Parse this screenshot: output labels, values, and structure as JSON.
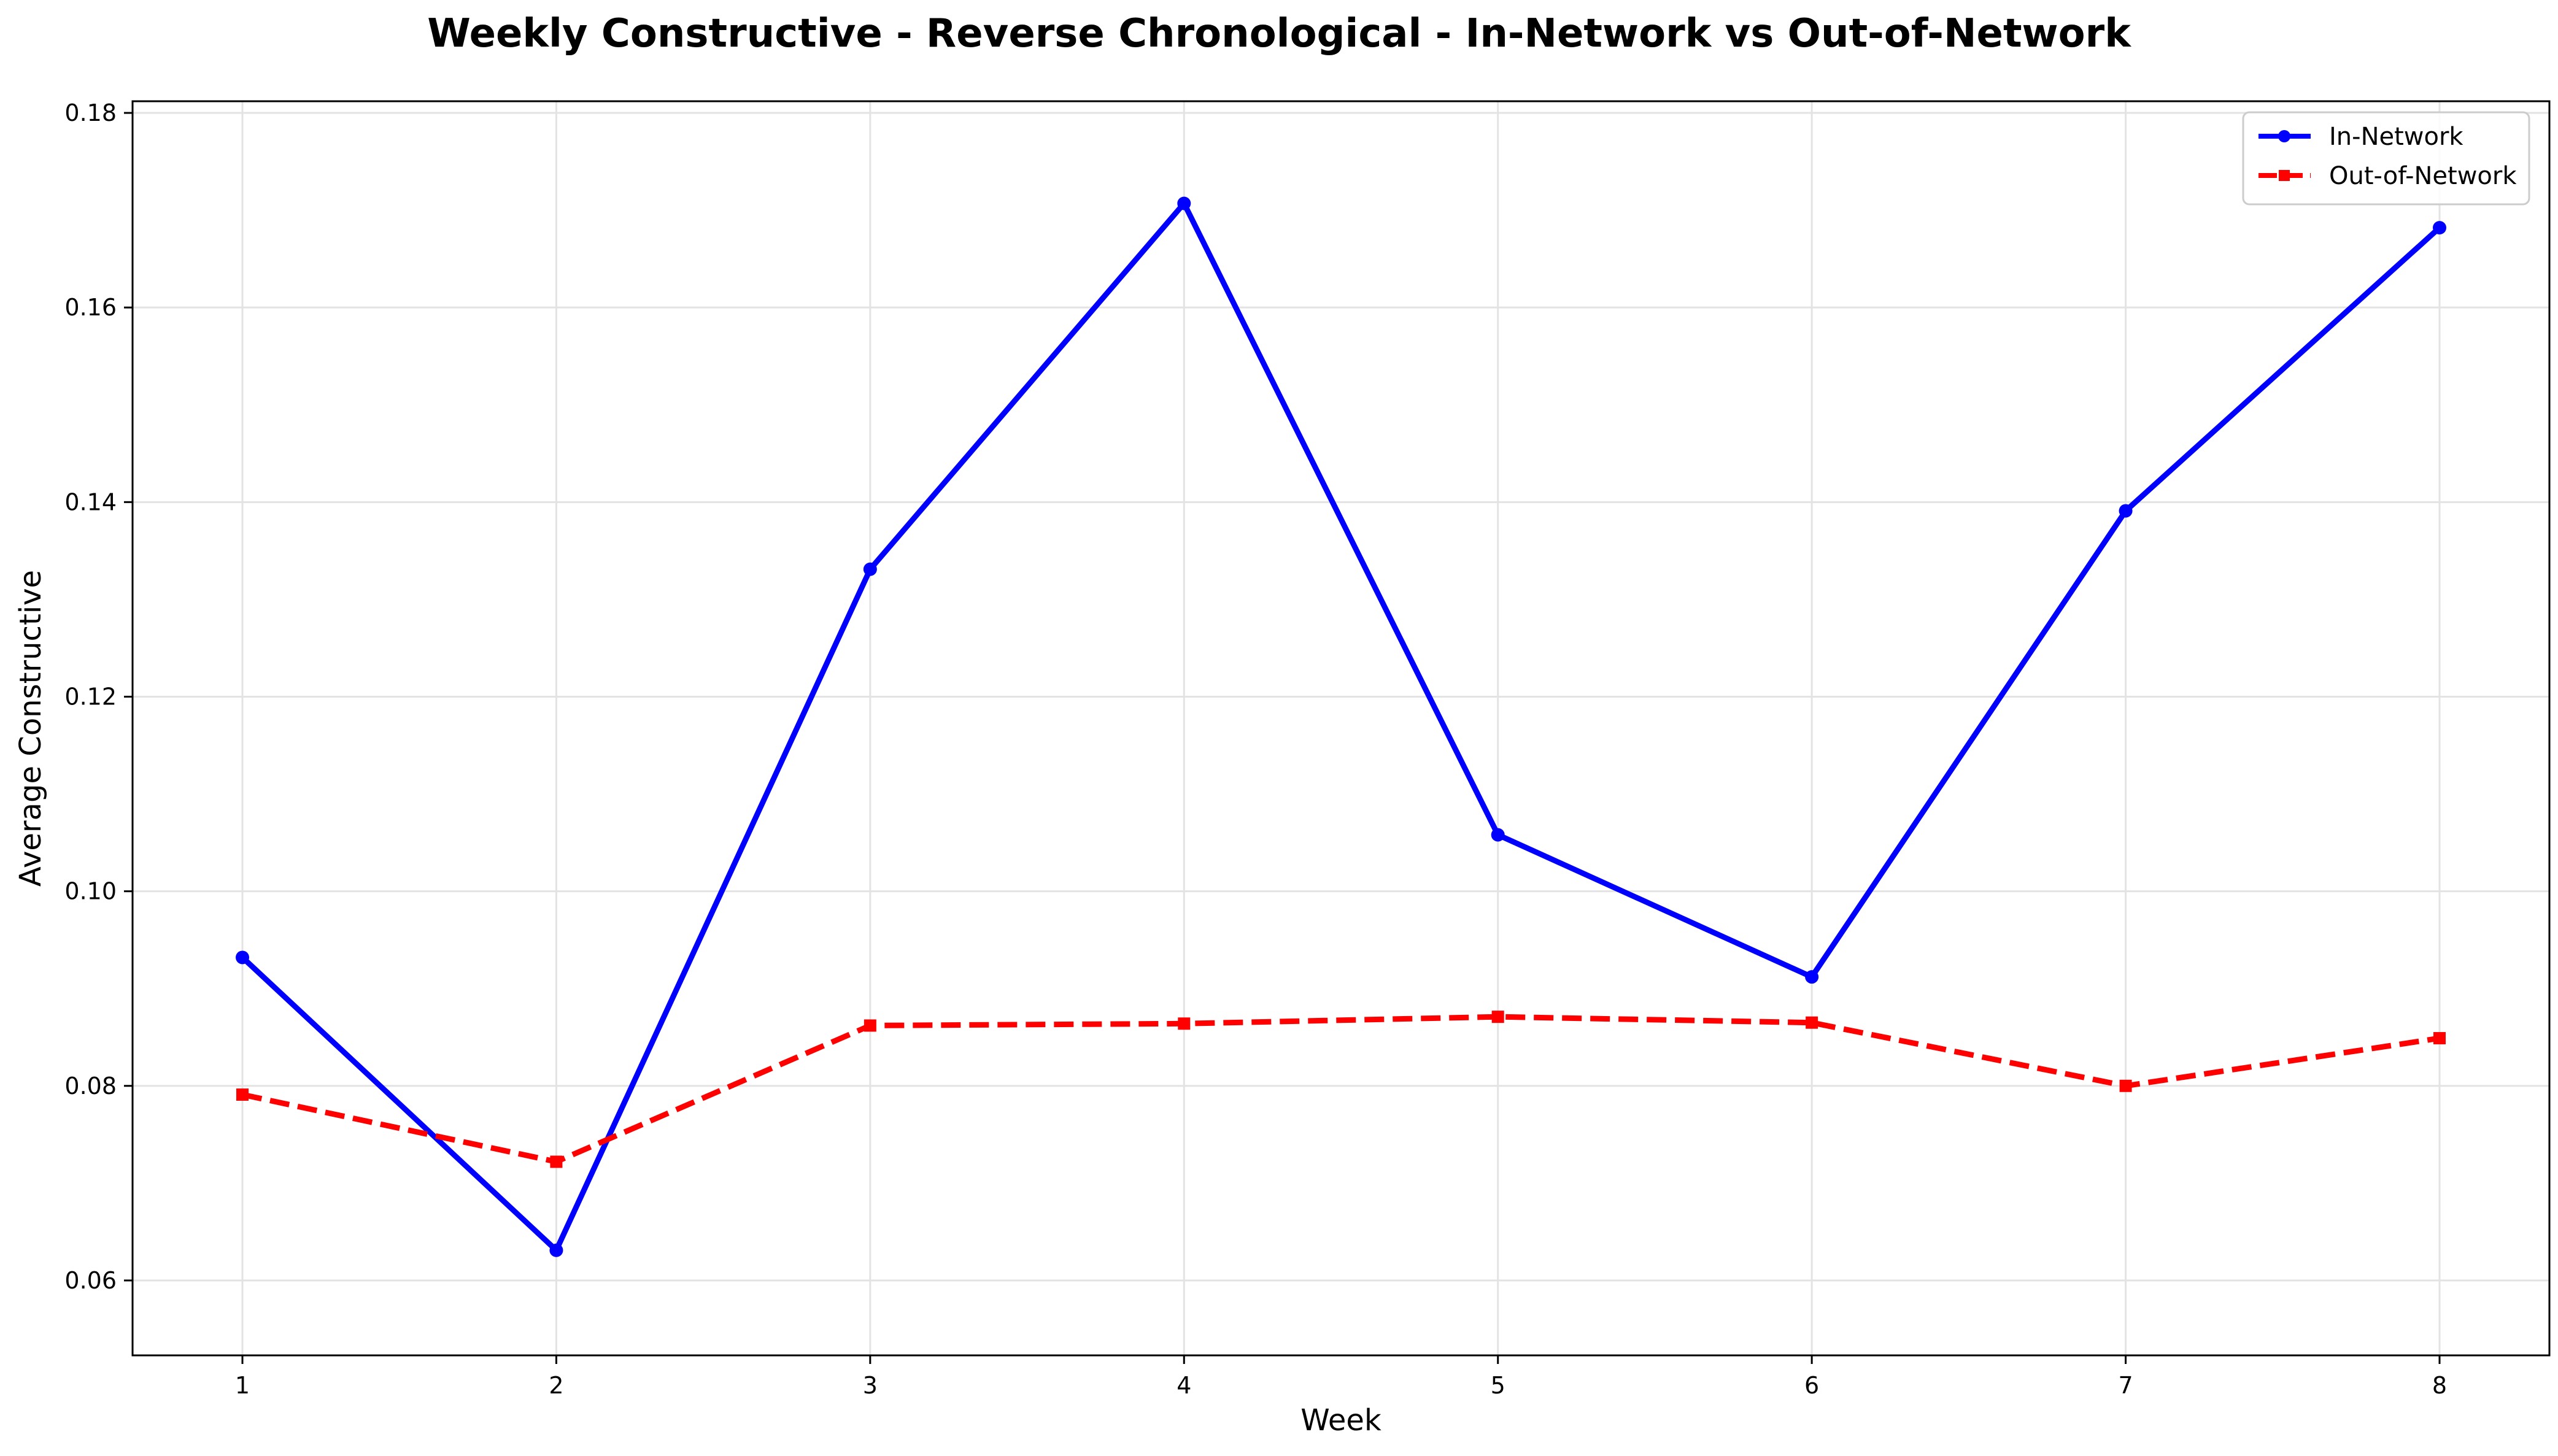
{
  "chart_data": {
    "type": "line",
    "title": "Weekly Constructive - Reverse Chronological - In-Network vs Out-of-Network",
    "xlabel": "Week",
    "ylabel": "Average Constructive",
    "x": [
      1,
      2,
      3,
      4,
      5,
      6,
      7,
      8
    ],
    "x_ticks": [
      "1",
      "2",
      "3",
      "4",
      "5",
      "6",
      "7",
      "8"
    ],
    "xlim": [
      0.65,
      8.35
    ],
    "ylim": [
      0.0523,
      0.1812
    ],
    "y_ticks": [
      "0.06",
      "0.08",
      "0.10",
      "0.12",
      "0.14",
      "0.16",
      "0.18"
    ],
    "y_tick_values": [
      0.06,
      0.08,
      0.1,
      0.12,
      0.14,
      0.16,
      0.18
    ],
    "grid": true,
    "legend_position": "top-right",
    "series": [
      {
        "name": "In-Network",
        "color": "#0000ff",
        "line_style": "solid",
        "marker": "circle",
        "values": [
          0.0932,
          0.0631,
          0.1331,
          0.1707,
          0.1058,
          0.0912,
          0.1391,
          0.1682
        ]
      },
      {
        "name": "Out-of-Network",
        "color": "#ff0000",
        "line_style": "dashed",
        "marker": "square",
        "values": [
          0.0791,
          0.0722,
          0.0862,
          0.0864,
          0.0871,
          0.0865,
          0.08,
          0.0849
        ]
      }
    ]
  }
}
